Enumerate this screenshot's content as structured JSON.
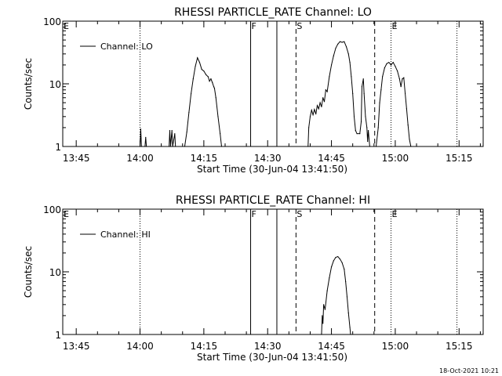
{
  "footer_timestamp": "18-Oct-2021 10:21",
  "chart_data": [
    {
      "type": "line",
      "title": "RHESSI PARTICLE_RATE Channel: LO",
      "xlabel": "Start Time (30-Jun-04 13:41:50)",
      "ylabel": "Counts/sec",
      "y_scale": "log",
      "ylim": [
        1,
        100
      ],
      "y_ticks": [
        1,
        10,
        100
      ],
      "y_tick_labels": [
        "1",
        "10",
        "100"
      ],
      "xlim": [
        "13:41:50",
        "15:20:40"
      ],
      "x_ticks": [
        "13:45",
        "14:00",
        "14:15",
        "14:30",
        "14:45",
        "15:00",
        "15:15"
      ],
      "legend": {
        "position": "top-left",
        "entries": [
          "Channel: LO"
        ]
      },
      "markers": [
        {
          "label": "E",
          "time": "13:41:50",
          "style": "dotted"
        },
        {
          "label": "",
          "time": "14:00:00",
          "style": "dotted"
        },
        {
          "label": "F",
          "time": "14:26:00",
          "style": "solid"
        },
        {
          "label": "",
          "time": "14:32:10",
          "style": "solid"
        },
        {
          "label": "S",
          "time": "14:36:40",
          "style": "dashed"
        },
        {
          "label": "",
          "time": "14:55:10",
          "style": "dashed"
        },
        {
          "label": "E",
          "time": "14:59:00",
          "style": "dotted"
        },
        {
          "label": "",
          "time": "15:14:30",
          "style": "dotted"
        }
      ],
      "series": [
        {
          "name": "Channel: LO",
          "segments": [
            [
              [
                "14:00:00",
                1.0
              ],
              [
                "14:00:10",
                1.9
              ],
              [
                "14:00:20",
                1.0
              ]
            ],
            [
              [
                "14:01:10",
                1.0
              ],
              [
                "14:01:20",
                1.4
              ],
              [
                "14:01:30",
                1.0
              ]
            ],
            [
              [
                "14:06:50",
                1.0
              ],
              [
                "14:07:00",
                1.8
              ],
              [
                "14:07:10",
                1.0
              ],
              [
                "14:07:30",
                1.8
              ],
              [
                "14:07:40",
                1.0
              ],
              [
                "14:08:10",
                1.6
              ],
              [
                "14:08:20",
                1.0
              ]
            ],
            [
              [
                "14:10:30",
                1.0
              ],
              [
                "14:11:00",
                1.7
              ],
              [
                "14:11:30",
                3.5
              ],
              [
                "14:12:00",
                7.0
              ],
              [
                "14:12:30",
                12
              ],
              [
                "14:13:00",
                19
              ],
              [
                "14:13:30",
                26
              ],
              [
                "14:14:00",
                22
              ],
              [
                "14:14:30",
                17
              ],
              [
                "14:15:00",
                16
              ],
              [
                "14:15:30",
                14
              ],
              [
                "14:16:00",
                13
              ],
              [
                "14:16:20",
                11
              ],
              [
                "14:16:40",
                12
              ],
              [
                "14:17:00",
                10.5
              ],
              [
                "14:17:20",
                9
              ],
              [
                "14:17:30",
                8.5
              ],
              [
                "14:17:50",
                6
              ],
              [
                "14:18:20",
                3
              ],
              [
                "14:18:50",
                1.6
              ],
              [
                "14:19:10",
                1.0
              ]
            ],
            [
              [
                "14:39:30",
                1.0
              ],
              [
                "14:39:40",
                2.0
              ],
              [
                "14:40:00",
                3.0
              ],
              [
                "14:40:20",
                3.8
              ],
              [
                "14:40:40",
                3.2
              ],
              [
                "14:41:00",
                3.9
              ],
              [
                "14:41:20",
                3.3
              ],
              [
                "14:41:40",
                4.5
              ],
              [
                "14:42:00",
                4.0
              ],
              [
                "14:42:20",
                5.0
              ],
              [
                "14:42:40",
                4.3
              ],
              [
                "14:43:00",
                6.0
              ],
              [
                "14:43:20",
                5.2
              ],
              [
                "14:43:40",
                8.0
              ],
              [
                "14:44:00",
                7.5
              ],
              [
                "14:44:30",
                13
              ],
              [
                "14:45:00",
                20
              ],
              [
                "14:45:30",
                28
              ],
              [
                "14:46:00",
                37
              ],
              [
                "14:46:30",
                43
              ],
              [
                "14:47:00",
                47
              ],
              [
                "14:47:30",
                46
              ],
              [
                "14:48:00",
                47
              ],
              [
                "14:48:30",
                39
              ],
              [
                "14:49:00",
                30
              ],
              [
                "14:49:20",
                22
              ],
              [
                "14:49:40",
                13
              ],
              [
                "14:50:00",
                7
              ],
              [
                "14:50:20",
                3
              ],
              [
                "14:50:40",
                1.8
              ],
              [
                "14:51:00",
                1.6
              ],
              [
                "14:51:40",
                1.6
              ],
              [
                "14:52:00",
                2.5
              ],
              [
                "14:52:10",
                9
              ],
              [
                "14:52:30",
                12
              ],
              [
                "14:52:40",
                7
              ],
              [
                "14:53:00",
                3
              ],
              [
                "14:53:20",
                2
              ],
              [
                "14:53:30",
                1.2
              ],
              [
                "14:53:40",
                1.8
              ],
              [
                "14:54:00",
                1.0
              ]
            ],
            [
              [
                "14:55:30",
                1.0
              ],
              [
                "14:56:00",
                2.0
              ],
              [
                "14:56:20",
                5.0
              ],
              [
                "14:56:40",
                8.0
              ],
              [
                "14:57:00",
                13
              ],
              [
                "14:57:30",
                18
              ],
              [
                "14:58:00",
                21
              ],
              [
                "14:58:30",
                22
              ],
              [
                "14:59:00",
                20
              ],
              [
                "14:59:30",
                22
              ],
              [
                "15:00:00",
                19
              ],
              [
                "15:00:30",
                16
              ],
              [
                "15:01:00",
                12
              ],
              [
                "15:01:20",
                9
              ],
              [
                "15:01:40",
                12
              ],
              [
                "15:02:00",
                12.5
              ],
              [
                "15:02:20",
                7
              ],
              [
                "15:02:40",
                4
              ],
              [
                "15:03:00",
                2.2
              ],
              [
                "15:03:20",
                1.3
              ],
              [
                "15:03:40",
                1.0
              ]
            ]
          ]
        }
      ]
    },
    {
      "type": "line",
      "title": "RHESSI PARTICLE_RATE Channel: HI",
      "xlabel": "Start Time (30-Jun-04 13:41:50)",
      "ylabel": "Counts/sec",
      "y_scale": "log",
      "ylim": [
        1,
        100
      ],
      "y_ticks": [
        1,
        10,
        100
      ],
      "y_tick_labels": [
        "1",
        "10",
        "100"
      ],
      "xlim": [
        "13:41:50",
        "15:20:40"
      ],
      "x_ticks": [
        "13:45",
        "14:00",
        "14:15",
        "14:30",
        "14:45",
        "15:00",
        "15:15"
      ],
      "legend": {
        "position": "top-left",
        "entries": [
          "Channel: HI"
        ]
      },
      "markers": [
        {
          "label": "E",
          "time": "13:41:50",
          "style": "dotted"
        },
        {
          "label": "",
          "time": "14:00:00",
          "style": "dotted"
        },
        {
          "label": "F",
          "time": "14:26:00",
          "style": "solid"
        },
        {
          "label": "",
          "time": "14:32:10",
          "style": "solid"
        },
        {
          "label": "S",
          "time": "14:36:40",
          "style": "dashed"
        },
        {
          "label": "",
          "time": "14:55:10",
          "style": "dashed"
        },
        {
          "label": "E",
          "time": "14:59:00",
          "style": "dotted"
        },
        {
          "label": "",
          "time": "15:14:30",
          "style": "dotted"
        }
      ],
      "series": [
        {
          "name": "Channel: HI",
          "segments": [
            [
              [
                "14:42:40",
                1.0
              ],
              [
                "14:42:50",
                2.0
              ],
              [
                "14:43:00",
                1.5
              ],
              [
                "14:43:10",
                3.0
              ],
              [
                "14:43:30",
                2.5
              ],
              [
                "14:44:00",
                5.0
              ],
              [
                "14:44:30",
                8.0
              ],
              [
                "14:45:00",
                12
              ],
              [
                "14:45:30",
                15
              ],
              [
                "14:46:00",
                17
              ],
              [
                "14:46:30",
                17.5
              ],
              [
                "14:47:00",
                16
              ],
              [
                "14:47:30",
                14
              ],
              [
                "14:48:00",
                11
              ],
              [
                "14:48:20",
                7
              ],
              [
                "14:48:40",
                4
              ],
              [
                "14:49:00",
                2.2
              ],
              [
                "14:49:20",
                1.3
              ],
              [
                "14:49:30",
                1.0
              ]
            ]
          ]
        }
      ]
    }
  ]
}
